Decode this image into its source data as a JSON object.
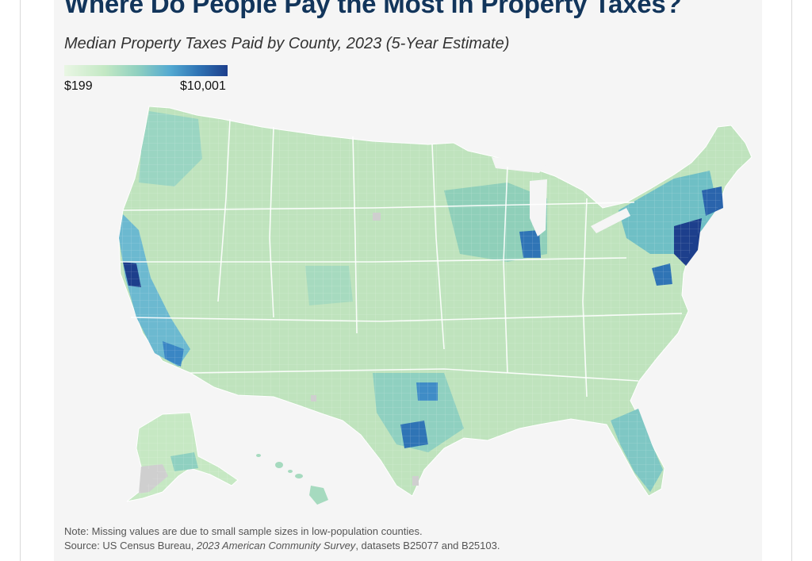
{
  "header": {
    "title": "Where Do People Pay the Most in Property Taxes?",
    "subtitle": "Median Property Taxes Paid by County, 2023 (5-Year Estimate)"
  },
  "legend": {
    "min_label": "$199",
    "max_label": "$10,001",
    "min_value": 199,
    "max_value": 10001,
    "color_low": "#e9f6e4",
    "color_high": "#1d3f8c",
    "missing_color": "#cfcfcf"
  },
  "map": {
    "type": "choropleth",
    "unit": "county",
    "regions_shown": [
      "Contiguous United States",
      "Alaska",
      "Hawaii"
    ],
    "high_tax_areas": [
      "New Jersey",
      "New York metro",
      "San Francisco Bay Area",
      "Chicago area",
      "Boston area",
      "Washington DC suburbs"
    ]
  },
  "footer": {
    "note": "Note: Missing values are due to small sample sizes in low-population counties.",
    "source_prefix": "Source: US Census Bureau, ",
    "source_survey": "2023 American Community Survey",
    "source_suffix": ", datasets B25077 and B25103."
  }
}
